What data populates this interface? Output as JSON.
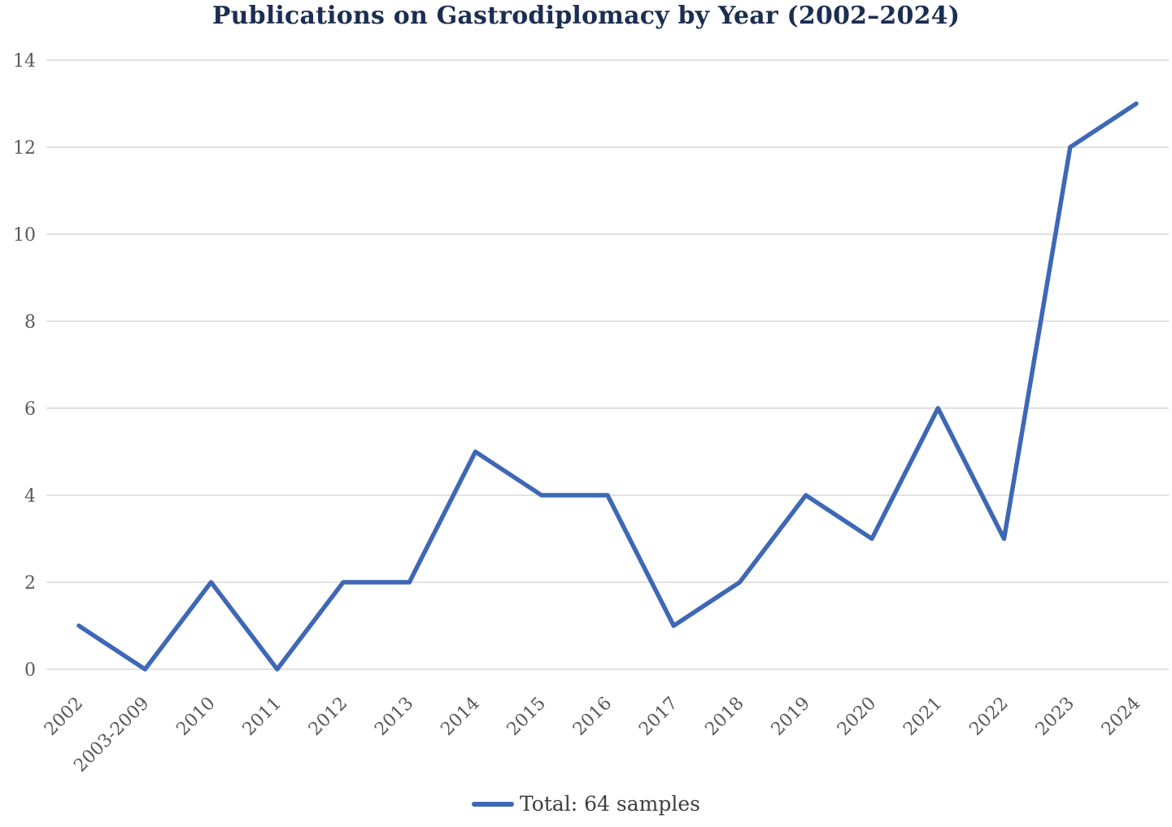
{
  "chart_data": {
    "type": "line",
    "title": "Publications on Gastrodiplomacy by Year (2002–2024)",
    "categories": [
      "2002",
      "2003-2009",
      "2010",
      "2011",
      "2012",
      "2013",
      "2014",
      "2015",
      "2016",
      "2017",
      "2018",
      "2019",
      "2020",
      "2021",
      "2022",
      "2023",
      "2024"
    ],
    "series": [
      {
        "name": "Total: 64 samples",
        "values": [
          1,
          0,
          2,
          0,
          2,
          2,
          5,
          4,
          4,
          1,
          2,
          4,
          3,
          6,
          3,
          12,
          13
        ]
      }
    ],
    "legend_label": "Total: 64 samples",
    "legend_position": "bottom",
    "xlabel": "",
    "ylabel": "",
    "ylim": [
      0,
      14
    ],
    "yticks": [
      0,
      2,
      4,
      6,
      8,
      10,
      12,
      14
    ],
    "grid": true,
    "x_tick_rotation_deg": -45,
    "colors": {
      "line": "#3E68B5",
      "title": "#1B2E52",
      "axis_labels": "#595959",
      "gridline": "#D9D9D9",
      "legend_text": "#3F3F3F",
      "background": "#FFFFFF"
    }
  }
}
